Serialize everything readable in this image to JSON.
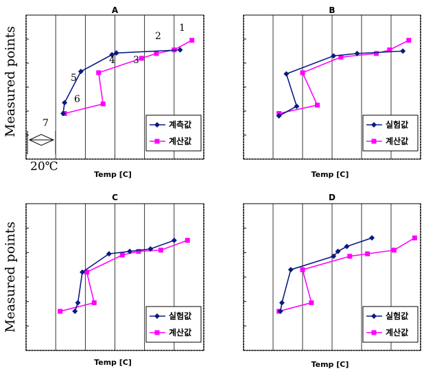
{
  "ylabel": "Measured points",
  "colors": {
    "measured": "#0a1a80",
    "computed": "#ff00ff"
  },
  "chart_data": [
    {
      "type": "line",
      "title": "A",
      "xlabel": "Temp [C]",
      "legend_position": "bottom-right",
      "xlim": [
        0,
        6
      ],
      "ylim": [
        0,
        6
      ],
      "grid": "vertical",
      "series": [
        {
          "name": "계측값",
          "marker": "diamond",
          "x": [
            1.25,
            1.3,
            1.85,
            2.9,
            3.05,
            5.2
          ],
          "y": [
            1.9,
            2.35,
            3.65,
            4.35,
            4.42,
            4.55
          ]
        },
        {
          "name": "계산값",
          "marker": "square",
          "x": [
            1.3,
            2.6,
            2.45,
            3.9,
            4.4,
            5.0,
            5.6
          ],
          "y": [
            1.9,
            2.3,
            3.6,
            4.2,
            4.4,
            4.55,
            4.95
          ]
        }
      ],
      "annotations": [
        "1",
        "2",
        "3",
        "4",
        "5",
        "6",
        "7",
        "20℃"
      ]
    },
    {
      "type": "line",
      "title": "B",
      "xlabel": "Temp [C]",
      "legend_position": "bottom-right",
      "xlim": [
        0,
        6
      ],
      "ylim": [
        0,
        6
      ],
      "grid": "vertical",
      "series": [
        {
          "name": "실험값",
          "marker": "diamond",
          "x": [
            1.2,
            1.8,
            1.45,
            3.05,
            3.85,
            5.4
          ],
          "y": [
            1.8,
            2.2,
            3.55,
            4.3,
            4.4,
            4.5
          ]
        },
        {
          "name": "계산값",
          "marker": "square",
          "x": [
            1.2,
            2.5,
            2.0,
            3.3,
            4.5,
            4.95,
            5.6
          ],
          "y": [
            1.9,
            2.25,
            3.6,
            4.25,
            4.4,
            4.55,
            4.95
          ]
        }
      ]
    },
    {
      "type": "line",
      "title": "C",
      "xlabel": "Temp [C]",
      "legend_position": "bottom-right",
      "xlim": [
        0,
        6
      ],
      "ylim": [
        0,
        6
      ],
      "grid": "vertical",
      "series": [
        {
          "name": "실험값",
          "marker": "diamond",
          "x": [
            1.65,
            1.75,
            1.9,
            2.8,
            3.5,
            4.2,
            5.0
          ],
          "y": [
            1.6,
            1.95,
            3.2,
            3.95,
            4.05,
            4.15,
            4.5
          ]
        },
        {
          "name": "계산값",
          "marker": "square",
          "x": [
            1.15,
            2.3,
            2.05,
            3.25,
            3.8,
            4.55,
            5.45
          ],
          "y": [
            1.6,
            1.95,
            3.2,
            3.9,
            4.05,
            4.1,
            4.5
          ]
        }
      ]
    },
    {
      "type": "line",
      "title": "D",
      "xlabel": "Temp [C]",
      "legend_position": "bottom-right",
      "xlim": [
        0,
        6
      ],
      "ylim": [
        0,
        6
      ],
      "grid": "vertical",
      "series": [
        {
          "name": "실험값",
          "marker": "diamond",
          "x": [
            1.25,
            1.3,
            1.6,
            3.05,
            3.2,
            3.5,
            4.35
          ],
          "y": [
            1.6,
            1.95,
            3.3,
            3.85,
            4.05,
            4.25,
            4.6
          ]
        },
        {
          "name": "계산값",
          "marker": "square",
          "x": [
            1.2,
            2.3,
            2.0,
            3.6,
            4.2,
            5.1,
            5.8
          ],
          "y": [
            1.6,
            1.95,
            3.3,
            3.85,
            3.95,
            4.1,
            4.6
          ]
        }
      ]
    }
  ]
}
